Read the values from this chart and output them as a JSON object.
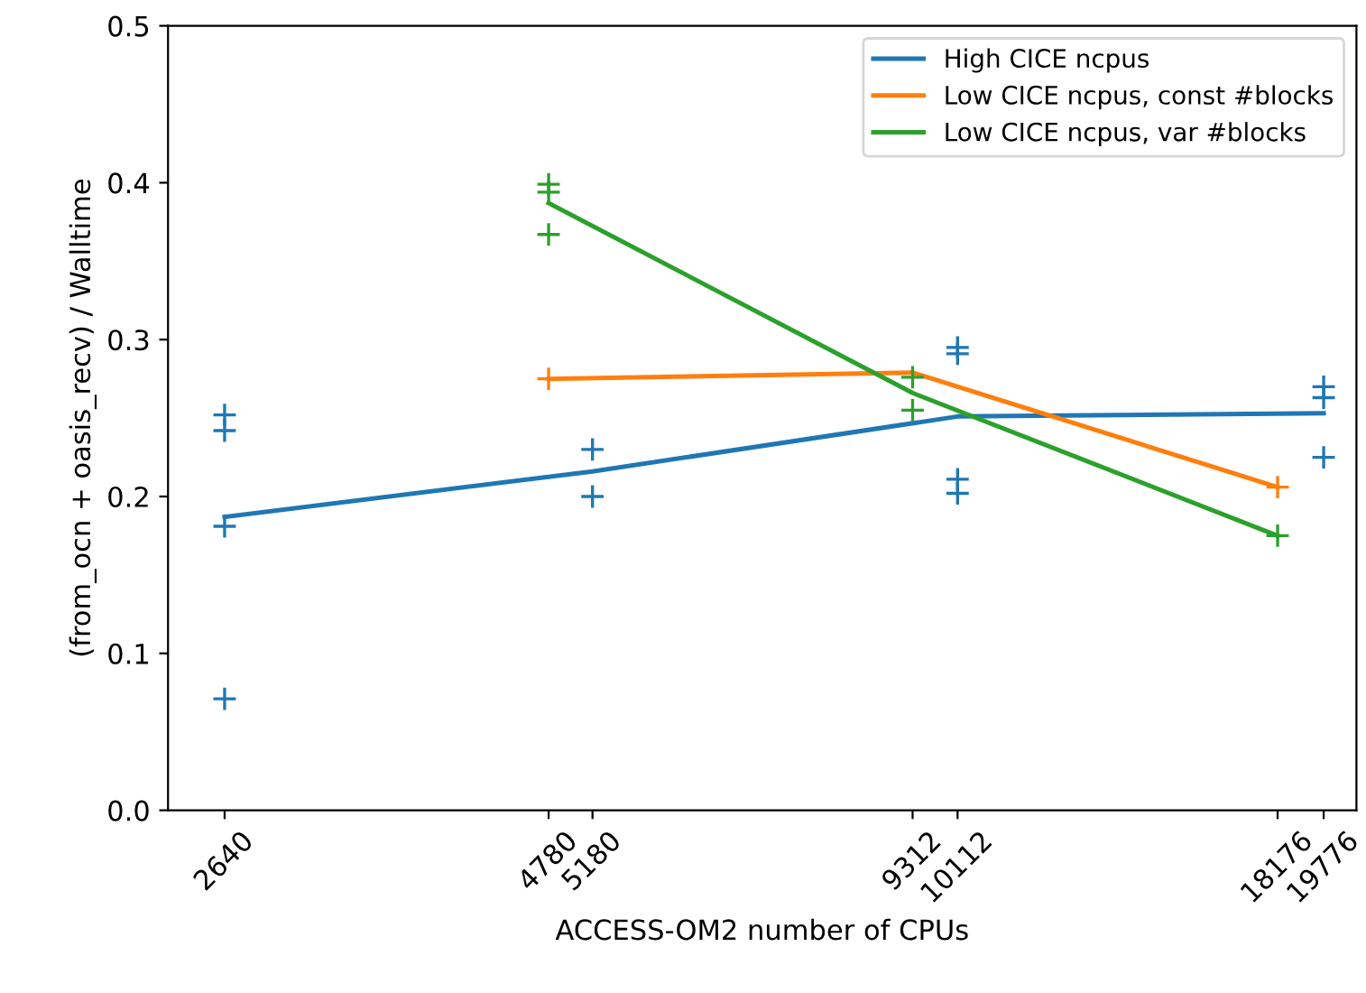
{
  "chart_data": {
    "type": "line",
    "xlabel": "ACCESS-OM2 number of CPUs",
    "ylabel": "(from_ocn + oasis_recv) / Walltime",
    "log": "x",
    "xlim": [
      2380,
      21000
    ],
    "xticks": [
      2640,
      4780,
      5180,
      9312,
      10112,
      18176,
      19776
    ],
    "ylim": [
      0,
      0.5
    ],
    "yticks": [
      {
        "value": 0,
        "label": "0.0"
      },
      0.1,
      0.2,
      0.3,
      0.4,
      0.5
    ],
    "grid": false,
    "legend": "top right",
    "series": [
      {
        "type": "scatter",
        "marker": "cross",
        "color": "#1f77b4",
        "x": [
          2640,
          2640,
          2640,
          2640,
          5180,
          5180,
          10112,
          10112,
          10112,
          10112,
          19776,
          19776,
          19776
        ],
        "values": [
          0.252,
          0.242,
          0.181,
          0.071,
          0.23,
          0.2,
          0.295,
          0.291,
          0.211,
          0.202,
          0.27,
          0.263,
          0.225
        ]
      },
      {
        "type": "scatter",
        "marker": "cross",
        "color": "#ff7f0e",
        "x": [
          4780,
          9312,
          18176
        ],
        "values": [
          0.275,
          null,
          0.206
        ]
      },
      {
        "type": "scatter",
        "marker": "cross",
        "color": "#2ca02c",
        "x": [
          4780,
          4780,
          4780,
          9312,
          9312,
          18176
        ],
        "values": [
          0.399,
          0.394,
          0.367,
          0.276,
          0.255,
          0.175
        ]
      },
      {
        "name": "High CICE ncpus",
        "color": "#1f77b4",
        "x": [
          2640,
          5180,
          10112,
          19776
        ],
        "values": [
          0.187,
          0.216,
          0.251,
          0.253
        ]
      },
      {
        "name": "Low CICE ncpus, const #blocks",
        "color": "#ff7f0e",
        "x": [
          4780,
          9312,
          18176
        ],
        "values": [
          0.275,
          0.279,
          0.206
        ]
      },
      {
        "name": "Low CICE ncpus, var #blocks",
        "color": "#2ca02c",
        "x": [
          4780,
          9312,
          18176
        ],
        "values": [
          0.387,
          0.266,
          0.175
        ]
      }
    ]
  }
}
